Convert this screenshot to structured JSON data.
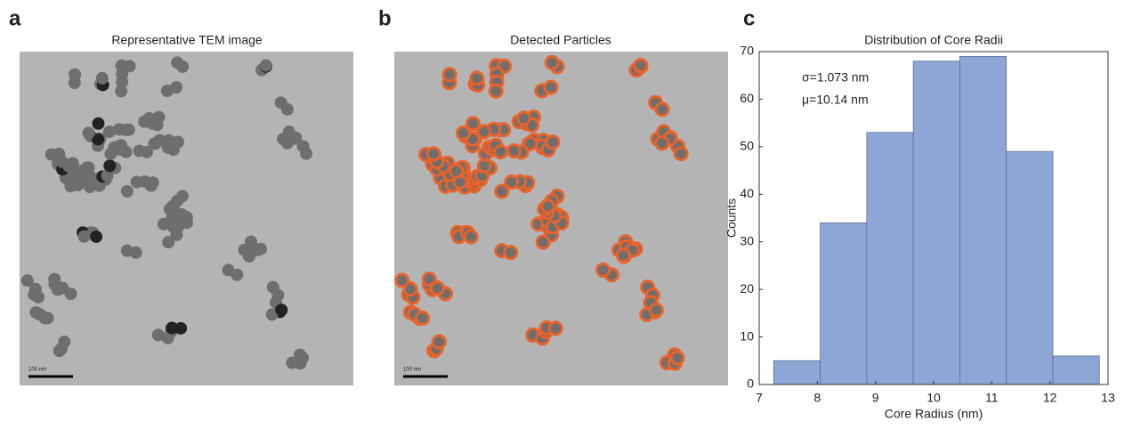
{
  "panels": [
    {
      "label": "a",
      "title": "Representative TEM image",
      "scale_bar_label": "100 nm"
    },
    {
      "label": "b",
      "title": "Detected Particles",
      "scale_bar_label": "100 nm"
    },
    {
      "label": "c"
    }
  ],
  "chart_data": {
    "type": "histogram",
    "title": "Distribution of Core Radii",
    "x_label": "Core Radius (nm)",
    "y_label": "Counts",
    "bins": [
      7.25,
      8.05,
      8.85,
      9.65,
      10.45,
      11.25,
      12.05,
      12.85
    ],
    "values": [
      5,
      34,
      53,
      68,
      69,
      49,
      6
    ],
    "color": "#8ea6d6",
    "xlim": [
      7,
      13
    ],
    "xticks": [
      7,
      8,
      9,
      10,
      11,
      12,
      13
    ],
    "ylim": [
      0,
      70
    ],
    "yticks": [
      0,
      10,
      20,
      30,
      40,
      50,
      60,
      70
    ],
    "annotations": [
      "σ=1.073 nm",
      "μ=10.14 nm"
    ]
  }
}
